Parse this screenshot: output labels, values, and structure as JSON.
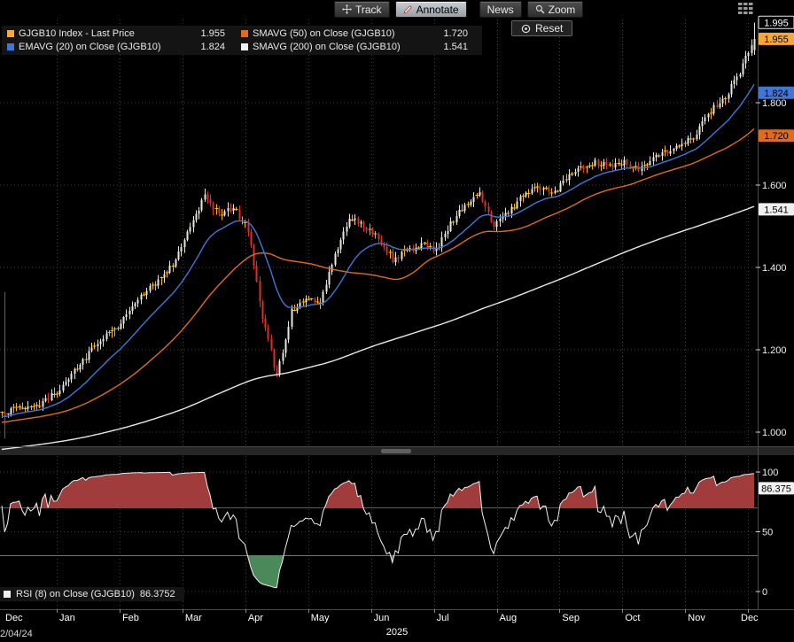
{
  "toolbar": {
    "track_label": "Track",
    "annotate_label": "Annotate",
    "news_label": "News",
    "zoom_label": "Zoom",
    "reset_label": "Reset",
    "icons": [
      "move-cross-icon",
      "pencil-icon",
      "magnifier-icon",
      "target-icon",
      "grid-icon"
    ]
  },
  "legend": {
    "items": [
      {
        "label": "GJGB10 Index - Last Price",
        "value": "1.955",
        "color": "#f7a838"
      },
      {
        "label": "SMAVG (50)  on Close (GJGB10)",
        "value": "1.720",
        "color": "#e06a1e"
      },
      {
        "label": "EMAVG (20)  on Close (GJGB10)",
        "value": "1.824",
        "color": "#3f77d9"
      },
      {
        "label": "SMAVG (200)  on Close (GJGB10)",
        "value": "1.541",
        "color": "#f0f0f0"
      }
    ]
  },
  "rsi_legend": {
    "color": "#f0f0f0",
    "label": "RSI (8)  on Close (GJGB10)",
    "value": "86.3752"
  },
  "axis": {
    "corner_date": "2/04/24",
    "high_box": {
      "text": "1.995",
      "value": 1.995
    },
    "badges": [
      {
        "text": "1.955",
        "value": 1.955,
        "bg": "#f7a838",
        "fg": "#000000"
      },
      {
        "text": "1.824",
        "value": 1.824,
        "bg": "#3f77d9",
        "fg": "#000000"
      },
      {
        "text": "1.720",
        "value": 1.72,
        "bg": "#e06a1e",
        "fg": "#000000"
      },
      {
        "text": "1.541",
        "value": 1.541,
        "bg": "#f0f0f0",
        "fg": "#000000"
      }
    ],
    "price_ticks": [
      {
        "label": "1.800",
        "value": 1.8
      },
      {
        "label": "1.600",
        "value": 1.6
      },
      {
        "label": "1.400",
        "value": 1.4
      },
      {
        "label": "1.200",
        "value": 1.2
      },
      {
        "label": "1.000",
        "value": 1.0
      }
    ],
    "rsi_ticks": [
      {
        "label": "100",
        "value": 100
      },
      {
        "label": "50",
        "value": 50
      },
      {
        "label": "0",
        "value": 0
      }
    ],
    "rsi_badge": {
      "text": "86.375",
      "value": 86.375,
      "bg": "#f0f0f0",
      "fg": "#000000"
    }
  },
  "chart_data": {
    "type": "candlestick",
    "security": "GJGB10 Index",
    "title": "GJGB10 Index - Last Price",
    "last_price": 1.955,
    "period_high": 1.995,
    "ylim": [
      0.95,
      2.0
    ],
    "y_ticks": [
      1.0,
      1.2,
      1.4,
      1.6,
      1.8
    ],
    "x_months": [
      "Dec",
      "Jan",
      "Feb",
      "Mar",
      "Apr",
      "May",
      "Jun",
      "Jul",
      "Aug",
      "Sep",
      "Oct",
      "Nov",
      "Dec"
    ],
    "year_label": "2025",
    "weekly_closes": [
      1.045,
      1.06,
      1.055,
      1.08,
      1.1,
      1.145,
      1.19,
      1.23,
      1.255,
      1.3,
      1.345,
      1.375,
      1.42,
      1.5,
      1.575,
      1.53,
      1.545,
      1.49,
      1.28,
      1.135,
      1.295,
      1.325,
      1.31,
      1.43,
      1.525,
      1.5,
      1.47,
      1.42,
      1.44,
      1.455,
      1.44,
      1.505,
      1.555,
      1.58,
      1.5,
      1.535,
      1.575,
      1.6,
      1.575,
      1.615,
      1.64,
      1.655,
      1.645,
      1.655,
      1.635,
      1.665,
      1.68,
      1.7,
      1.725,
      1.78,
      1.815,
      1.875,
      1.955
    ],
    "overlays": [
      {
        "name": "EMAVG (20) on Close (GJGB10)",
        "type": "ema",
        "period": 20,
        "color": "#3f77d9",
        "last": 1.824
      },
      {
        "name": "SMAVG (50) on Close (GJGB10)",
        "type": "sma",
        "period": 50,
        "color": "#e06a1e",
        "last": 1.72
      },
      {
        "name": "SMAVG (200) on Close (GJGB10)",
        "type": "sma",
        "period": 200,
        "color": "#e8e8e8",
        "last": 1.541
      }
    ],
    "rsi": {
      "name": "RSI (8) on Close (GJGB10)",
      "period": 8,
      "last": 86.3752,
      "overbought": 70,
      "oversold": 30,
      "ylim": [
        0,
        100
      ],
      "ticks": [
        0,
        50,
        100
      ],
      "line_color": "#f0f0f0",
      "overbought_color": "#cc2b2b",
      "oversold_color": "#2f9e4f",
      "over_fill": "#a03c3c",
      "under_fill": "#4a8a5a"
    },
    "colors": {
      "up": "#e8e6dc",
      "down": "#dd2f26",
      "doji": "#ffb400",
      "grid": "#3c3c3c",
      "axis": "#4a4a4a",
      "bg": "#000000"
    }
  }
}
